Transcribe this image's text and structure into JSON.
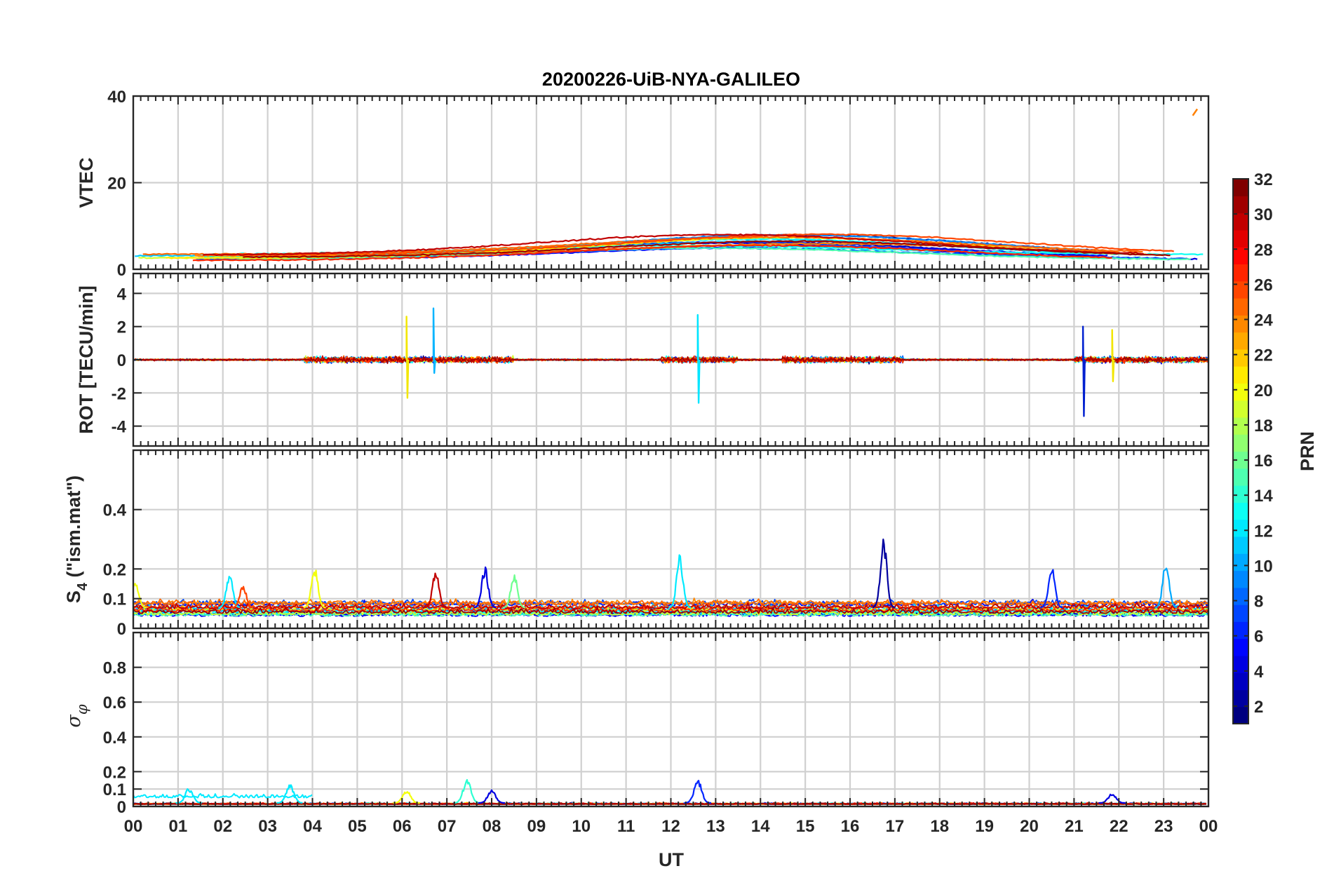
{
  "figure": {
    "title": "20200226-UiB-NYA-GALILEO",
    "xlabel": "UT",
    "x_tick_labels": [
      "00",
      "01",
      "02",
      "03",
      "04",
      "05",
      "06",
      "07",
      "08",
      "09",
      "10",
      "11",
      "12",
      "13",
      "14",
      "15",
      "16",
      "17",
      "18",
      "19",
      "20",
      "21",
      "22",
      "23",
      "00"
    ]
  },
  "colorbar": {
    "label": "PRN",
    "colormap": "jet",
    "range": [
      1,
      32
    ],
    "tick_labels": [
      "2",
      "4",
      "6",
      "8",
      "10",
      "12",
      "14",
      "16",
      "18",
      "20",
      "22",
      "24",
      "26",
      "28",
      "30",
      "32"
    ],
    "tick_values": [
      2,
      4,
      6,
      8,
      10,
      12,
      14,
      16,
      18,
      20,
      22,
      24,
      26,
      28,
      30,
      32
    ]
  },
  "chart_data": [
    {
      "type": "line",
      "panel": "vtec",
      "ylabel": "VTEC",
      "xlim": [
        0,
        24
      ],
      "ylim": [
        0,
        40
      ],
      "yticks": [
        0,
        20,
        40
      ],
      "ytick_labels": [
        "0",
        "20",
        "40"
      ],
      "grid": true,
      "series_description_values": {
        "typical_range": [
          1,
          9
        ],
        "peak_hour": 14,
        "isolated_trace": {
          "x": [
            23.65,
            23.75
          ],
          "y": [
            35.5,
            37
          ],
          "color": "#ff8000"
        }
      }
    },
    {
      "type": "line",
      "panel": "rot",
      "ylabel": "ROT [TECU/min]",
      "xlim": [
        0,
        24
      ],
      "ylim": [
        -5.2,
        5.2
      ],
      "yticks": [
        -4,
        -2,
        0,
        2,
        4
      ],
      "ytick_labels": [
        "-4",
        "-2",
        "0",
        "2",
        "4"
      ],
      "grid": true,
      "spikes": [
        {
          "x": 6.1,
          "min": -2.3,
          "max": 2.6
        },
        {
          "x": 6.7,
          "min": -0.8,
          "max": 3.1
        },
        {
          "x": 12.6,
          "min": -2.6,
          "max": 2.7
        },
        {
          "x": 21.2,
          "min": -3.4,
          "max": 2.0
        },
        {
          "x": 21.85,
          "min": -1.3,
          "max": 1.8
        }
      ]
    },
    {
      "type": "line",
      "panel": "s4",
      "ylabel_main": "S",
      "ylabel_sub": "4",
      "ylabel_rest": " (\"ism.mat\")",
      "xlim": [
        0,
        24
      ],
      "ylim": [
        0,
        0.6
      ],
      "yticks": [
        0,
        0.1,
        0.2,
        0.4
      ],
      "ytick_labels": [
        "0",
        "0.1",
        "0.2",
        "0.4"
      ],
      "grid": true,
      "peaks": [
        {
          "x": 0.05,
          "y": 0.16,
          "prn": 20
        },
        {
          "x": 2.15,
          "y": 0.19,
          "prn": 12
        },
        {
          "x": 2.45,
          "y": 0.15,
          "prn": 26
        },
        {
          "x": 4.05,
          "y": 0.21,
          "prn": 20
        },
        {
          "x": 6.75,
          "y": 0.2,
          "prn": 30
        },
        {
          "x": 7.85,
          "y": 0.21,
          "prn": 4
        },
        {
          "x": 8.5,
          "y": 0.19,
          "prn": 16
        },
        {
          "x": 12.2,
          "y": 0.25,
          "prn": 12
        },
        {
          "x": 16.75,
          "y": 0.31,
          "prn": 2
        },
        {
          "x": 20.5,
          "y": 0.21,
          "prn": 6
        },
        {
          "x": 23.05,
          "y": 0.23,
          "prn": 10
        }
      ]
    },
    {
      "type": "line",
      "panel": "sigma_phi",
      "ylabel_symbol": "σ",
      "ylabel_sub": "φ",
      "xlim": [
        0,
        24
      ],
      "ylim": [
        0,
        1
      ],
      "yticks": [
        0,
        0.1,
        0.2,
        0.4,
        0.6,
        0.8
      ],
      "ytick_labels": [
        "0",
        "0.1",
        "0.2",
        "0.4",
        "0.6",
        "0.8"
      ],
      "grid": true,
      "peaks": [
        {
          "x": 1.25,
          "y": 0.11,
          "prn": 12
        },
        {
          "x": 3.5,
          "y": 0.13,
          "prn": 12
        },
        {
          "x": 6.1,
          "y": 0.1,
          "prn": 20
        },
        {
          "x": 7.45,
          "y": 0.17,
          "prn": 14
        },
        {
          "x": 8.0,
          "y": 0.1,
          "prn": 4
        },
        {
          "x": 12.6,
          "y": 0.16,
          "prn": 6
        },
        {
          "x": 21.85,
          "y": 0.08,
          "prn": 4
        }
      ]
    }
  ]
}
